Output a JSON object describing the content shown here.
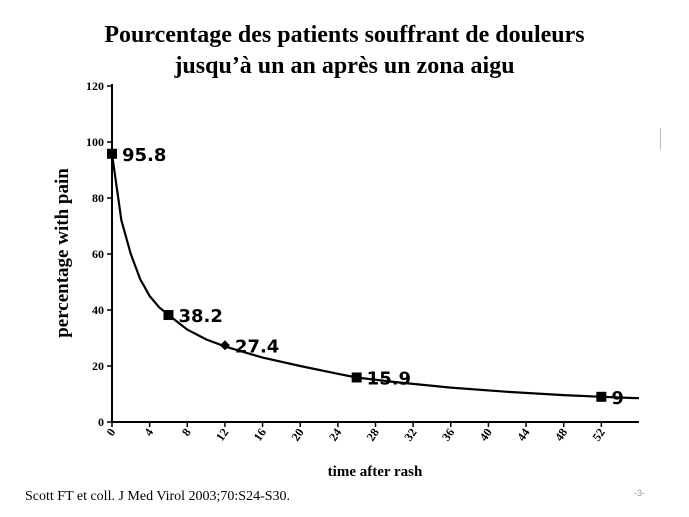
{
  "title_line1": "Pourcentage des patients souffrant de douleurs",
  "title_line2": "jusqu’à un an après un zona aigu",
  "citation": "Scott FT et coll. J Med Virol 2003;70:S24-S30.",
  "page_mark": "-3-",
  "chart_data": {
    "type": "line",
    "title": "Pourcentage des patients souffrant de douleurs jusqu’à un an après un zona aigu",
    "xlabel": "time after rash",
    "ylabel": "percentage with pain",
    "xlim": [
      0,
      56
    ],
    "ylim": [
      0,
      120
    ],
    "x_ticks": [
      0,
      4,
      8,
      12,
      16,
      20,
      24,
      28,
      32,
      36,
      40,
      44,
      48,
      52
    ],
    "y_ticks": [
      0,
      20,
      40,
      60,
      80,
      100,
      120
    ],
    "grid": false,
    "legend": "none",
    "series": [
      {
        "points": [
          {
            "x": 0,
            "y": 95.8,
            "label": "95.8",
            "marker": "square"
          },
          {
            "x": 6,
            "y": 38.2,
            "label": "38.2",
            "marker": "square"
          },
          {
            "x": 12,
            "y": 27.4,
            "label": "27.4",
            "marker": "diamond"
          },
          {
            "x": 26,
            "y": 15.9,
            "label": "15.9",
            "marker": "square"
          },
          {
            "x": 52,
            "y": 9,
            "label": "9",
            "marker": "square"
          }
        ]
      }
    ],
    "fit_curve": [
      [
        0,
        95.8
      ],
      [
        1,
        72
      ],
      [
        2,
        60
      ],
      [
        3,
        51
      ],
      [
        4,
        45
      ],
      [
        5,
        41
      ],
      [
        6,
        38.2
      ],
      [
        8,
        33
      ],
      [
        10,
        29.5
      ],
      [
        12,
        27
      ],
      [
        16,
        23
      ],
      [
        20,
        20
      ],
      [
        24,
        17.2
      ],
      [
        26,
        15.9
      ],
      [
        30,
        14.3
      ],
      [
        36,
        12.3
      ],
      [
        42,
        10.8
      ],
      [
        48,
        9.6
      ],
      [
        52,
        9
      ],
      [
        56,
        8.5
      ]
    ]
  }
}
